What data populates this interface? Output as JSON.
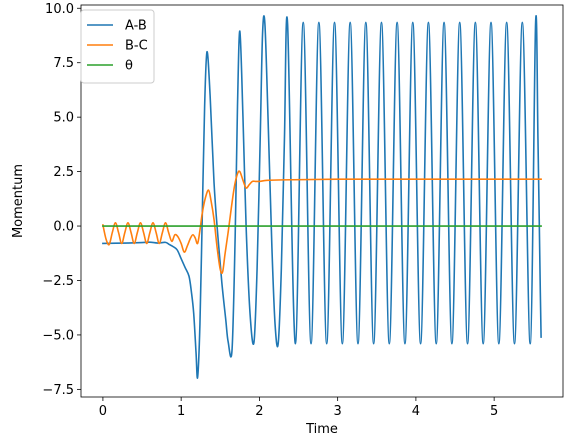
{
  "chart_data": {
    "type": "line",
    "title": "",
    "xlabel": "Time",
    "ylabel": "Momentum",
    "xlim": [
      -0.28,
      5.88
    ],
    "ylim": [
      -7.85,
      10.15
    ],
    "x_ticks": [
      0,
      1,
      2,
      3,
      4,
      5
    ],
    "x_tick_labels": [
      "0",
      "1",
      "2",
      "3",
      "4",
      "5"
    ],
    "y_ticks": [
      -7.5,
      -5.0,
      -2.5,
      0.0,
      2.5,
      5.0,
      7.5,
      10.0
    ],
    "y_tick_labels": [
      "−7.5",
      "−5.0",
      "−2.5",
      "0.0",
      "2.5",
      "5.0",
      "7.5",
      "10.0"
    ],
    "grid": false,
    "legend_position": "top-left",
    "series": [
      {
        "name": "A-B",
        "color": "#1f77b4",
        "points": [
          [
            0.0,
            -0.8
          ],
          [
            0.3,
            -0.78
          ],
          [
            0.5,
            -0.76
          ],
          [
            0.6,
            -0.74
          ],
          [
            0.7,
            -0.78
          ],
          [
            0.8,
            -0.75
          ],
          [
            0.85,
            -0.85
          ],
          [
            0.9,
            -0.95
          ],
          [
            0.95,
            -1.1
          ],
          [
            1.0,
            -1.5
          ],
          [
            1.05,
            -1.9
          ],
          [
            1.1,
            -2.3
          ],
          [
            1.13,
            -3.0
          ],
          [
            1.16,
            -4.0
          ],
          [
            1.19,
            -5.8
          ],
          [
            1.21,
            -6.95
          ],
          [
            1.24,
            -4.5
          ],
          [
            1.27,
            0.5
          ],
          [
            1.3,
            5.5
          ],
          [
            1.33,
            8.0
          ],
          [
            1.37,
            6.0
          ],
          [
            1.42,
            2.0
          ],
          [
            1.47,
            -0.5
          ],
          [
            1.52,
            -2.6
          ],
          [
            1.57,
            -4.3
          ],
          [
            1.6,
            -5.3
          ],
          [
            1.65,
            -5.7
          ],
          [
            1.69,
            -0.5
          ],
          [
            1.72,
            5.5
          ],
          [
            1.75,
            8.95
          ],
          [
            1.79,
            5.0
          ],
          [
            1.83,
            0.0
          ],
          [
            1.88,
            -4.0
          ],
          [
            1.93,
            -5.35
          ],
          [
            1.97,
            -2.0
          ],
          [
            2.01,
            4.0
          ],
          [
            2.04,
            8.8
          ],
          [
            2.07,
            9.3
          ],
          [
            2.11,
            5.0
          ],
          [
            2.16,
            -1.0
          ],
          [
            2.2,
            -4.5
          ],
          [
            2.24,
            -5.4
          ],
          [
            2.28,
            -2.0
          ],
          [
            2.32,
            4.0
          ],
          [
            2.36,
            9.3
          ],
          [
            2.46,
            -5.4
          ],
          [
            2.56,
            9.35
          ],
          [
            2.66,
            -5.4
          ],
          [
            2.76,
            9.35
          ],
          [
            2.86,
            -5.4
          ],
          [
            2.96,
            9.35
          ],
          [
            3.06,
            -5.4
          ],
          [
            3.16,
            9.35
          ],
          [
            3.26,
            -5.4
          ],
          [
            3.36,
            9.35
          ],
          [
            3.46,
            -5.4
          ],
          [
            3.56,
            9.35
          ],
          [
            3.66,
            -5.4
          ],
          [
            3.76,
            9.35
          ],
          [
            3.86,
            -5.4
          ],
          [
            3.96,
            9.35
          ],
          [
            4.06,
            -5.4
          ],
          [
            4.16,
            9.35
          ],
          [
            4.26,
            -5.4
          ],
          [
            4.36,
            9.35
          ],
          [
            4.46,
            -5.4
          ],
          [
            4.56,
            9.35
          ],
          [
            4.66,
            -5.4
          ],
          [
            4.76,
            9.35
          ],
          [
            4.86,
            -5.4
          ],
          [
            4.96,
            9.35
          ],
          [
            5.06,
            -5.4
          ],
          [
            5.16,
            9.35
          ],
          [
            5.26,
            -5.4
          ],
          [
            5.36,
            9.35
          ],
          [
            5.46,
            -5.4
          ],
          [
            5.53,
            9.35
          ],
          [
            5.56,
            4.0
          ],
          [
            5.59,
            -3.0
          ],
          [
            5.6,
            -5.1
          ]
        ]
      },
      {
        "name": "B-C",
        "color": "#ff7f0e",
        "points": [
          [
            0.0,
            0.05
          ],
          [
            0.04,
            -0.6
          ],
          [
            0.08,
            -0.85
          ],
          [
            0.12,
            -0.3
          ],
          [
            0.16,
            0.15
          ],
          [
            0.2,
            -0.3
          ],
          [
            0.24,
            -0.8
          ],
          [
            0.28,
            -0.3
          ],
          [
            0.32,
            0.15
          ],
          [
            0.36,
            -0.3
          ],
          [
            0.4,
            -0.8
          ],
          [
            0.44,
            -0.3
          ],
          [
            0.48,
            0.15
          ],
          [
            0.52,
            -0.3
          ],
          [
            0.56,
            -0.8
          ],
          [
            0.6,
            -0.3
          ],
          [
            0.64,
            0.15
          ],
          [
            0.68,
            -0.3
          ],
          [
            0.72,
            -0.8
          ],
          [
            0.76,
            -0.3
          ],
          [
            0.8,
            0.15
          ],
          [
            0.84,
            -0.3
          ],
          [
            0.88,
            -0.7
          ],
          [
            0.92,
            -0.4
          ],
          [
            0.96,
            -0.5
          ],
          [
            1.0,
            -0.8
          ],
          [
            1.04,
            -1.2
          ],
          [
            1.08,
            -0.9
          ],
          [
            1.12,
            -0.55
          ],
          [
            1.15,
            -0.4
          ],
          [
            1.18,
            -0.55
          ],
          [
            1.21,
            -0.8
          ],
          [
            1.24,
            -0.2
          ],
          [
            1.27,
            0.6
          ],
          [
            1.31,
            1.3
          ],
          [
            1.35,
            1.65
          ],
          [
            1.38,
            1.2
          ],
          [
            1.42,
            0.3
          ],
          [
            1.46,
            -1.0
          ],
          [
            1.5,
            -2.0
          ],
          [
            1.53,
            -2.1
          ],
          [
            1.56,
            -1.3
          ],
          [
            1.6,
            -0.3
          ],
          [
            1.64,
            0.8
          ],
          [
            1.68,
            1.8
          ],
          [
            1.72,
            2.4
          ],
          [
            1.75,
            2.5
          ],
          [
            1.79,
            2.1
          ],
          [
            1.83,
            1.75
          ],
          [
            1.87,
            1.9
          ],
          [
            1.91,
            2.05
          ],
          [
            1.95,
            2.05
          ],
          [
            2.0,
            2.05
          ],
          [
            2.1,
            2.1
          ],
          [
            2.3,
            2.12
          ],
          [
            3.0,
            2.15
          ],
          [
            4.0,
            2.15
          ],
          [
            5.0,
            2.15
          ],
          [
            5.6,
            2.15
          ]
        ]
      },
      {
        "name": "θ",
        "color": "#2ca02c",
        "points": [
          [
            0.0,
            0.0
          ],
          [
            5.6,
            0.0
          ]
        ]
      }
    ]
  }
}
